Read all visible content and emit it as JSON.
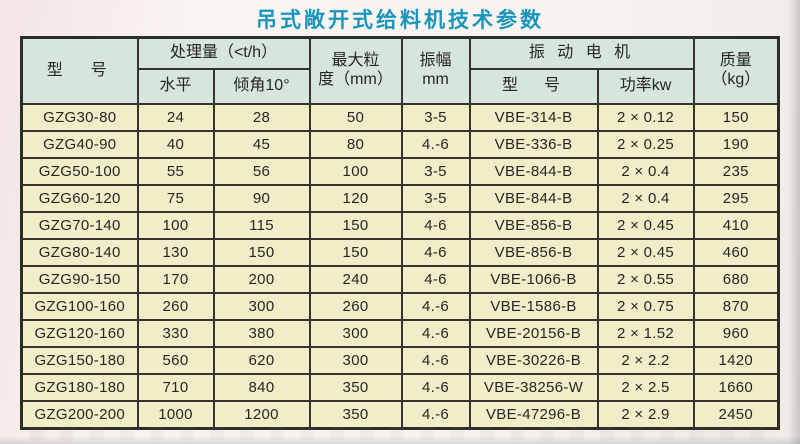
{
  "title": "吊式敞开式给料机技术参数",
  "colors": {
    "title_text": "#1a96bd",
    "header_cell_bg": "#d7e6db",
    "data_cell_bg": "#f0edc8",
    "border": "#35352e",
    "page_bg": "#f8f3ef"
  },
  "table": {
    "header": {
      "model": "型　号",
      "capacity_group": "处理量（<t/h）",
      "capacity_horizontal": "水平",
      "capacity_incline": "倾角10°",
      "max_particle": "最大粒\n度（mm）",
      "amplitude": "振幅\nmm",
      "motor_group": "振 动 电 机",
      "motor_model": "型　号",
      "motor_power": "功率kw",
      "mass": "质量\n（kg）"
    },
    "rows": [
      [
        "GZG30-80",
        "24",
        "28",
        "50",
        "3-5",
        "VBE-314-B",
        "2 × 0.12",
        "150"
      ],
      [
        "GZG40-90",
        "40",
        "45",
        "80",
        "4.-6",
        "VBE-336-B",
        "2 × 0.25",
        "190"
      ],
      [
        "GZG50-100",
        "55",
        "56",
        "100",
        "3-5",
        "VBE-844-B",
        "2 × 0.4",
        "235"
      ],
      [
        "GZG60-120",
        "75",
        "90",
        "120",
        "3-5",
        "VBE-844-B",
        "2 × 0.4",
        "295"
      ],
      [
        "GZG70-140",
        "100",
        "115",
        "150",
        "4-6",
        "VBE-856-B",
        "2 × 0.45",
        "410"
      ],
      [
        "GZG80-140",
        "130",
        "150",
        "150",
        "4-6",
        "VBE-856-B",
        "2 × 0.45",
        "460"
      ],
      [
        "GZG90-150",
        "170",
        "200",
        "240",
        "4-6",
        "VBE-1066-B",
        "2 × 0.55",
        "680"
      ],
      [
        "GZG100-160",
        "260",
        "300",
        "260",
        "4.-6",
        "VBE-1586-B",
        "2 × 0.75",
        "870"
      ],
      [
        "GZG120-160",
        "330",
        "380",
        "300",
        "4.-6",
        "VBE-20156-B",
        "2 × 1.52",
        "960"
      ],
      [
        "GZG150-180",
        "560",
        "620",
        "300",
        "4.-6",
        "VBE-30226-B",
        "2 × 2.2",
        "1420"
      ],
      [
        "GZG180-180",
        "710",
        "840",
        "350",
        "4.-6",
        "VBE-38256-W",
        "2 × 2.5",
        "1660"
      ],
      [
        "GZG200-200",
        "1000",
        "1200",
        "350",
        "4.-6",
        "VBE-47296-B",
        "2 × 2.9",
        "2450"
      ]
    ]
  }
}
